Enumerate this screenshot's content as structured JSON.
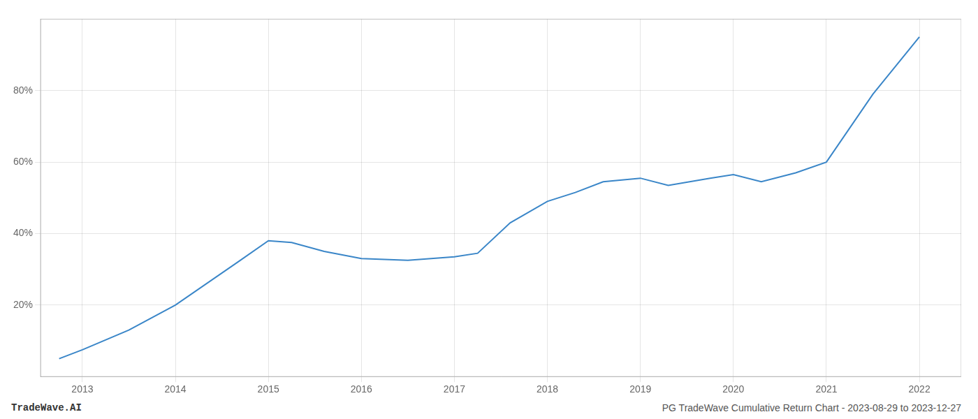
{
  "chart_data": {
    "type": "line",
    "x": [
      2012.75,
      2013.0,
      2013.5,
      2014.0,
      2014.67,
      2015.0,
      2015.25,
      2015.6,
      2016.0,
      2016.5,
      2017.0,
      2017.25,
      2017.6,
      2018.0,
      2018.3,
      2018.6,
      2019.0,
      2019.3,
      2019.75,
      2020.0,
      2020.3,
      2020.67,
      2021.0,
      2021.5,
      2022.0
    ],
    "values": [
      5.0,
      7.5,
      13.0,
      20.0,
      32.0,
      38.0,
      37.5,
      35.0,
      33.0,
      32.5,
      33.5,
      34.5,
      43.0,
      49.0,
      51.5,
      54.5,
      55.5,
      53.5,
      55.5,
      56.5,
      54.5,
      57.0,
      60.0,
      79.0,
      95.0
    ],
    "color": "#3a86c8",
    "xlim": [
      2012.55,
      2022.45
    ],
    "xticks": [
      2013,
      2014,
      2015,
      2016,
      2017,
      2018,
      2019,
      2020,
      2021,
      2022
    ],
    "ylim": [
      0,
      100
    ],
    "yticks": [
      {
        "value": 20,
        "label": "20%"
      },
      {
        "value": 40,
        "label": "40%"
      },
      {
        "value": 60,
        "label": "60%"
      },
      {
        "value": 80,
        "label": "80%"
      }
    ],
    "grid": true,
    "annotations": [
      "TradeWave.AI",
      "PG TradeWave Cumulative Return Chart - 2023-08-29 to 2023-12-27"
    ]
  }
}
